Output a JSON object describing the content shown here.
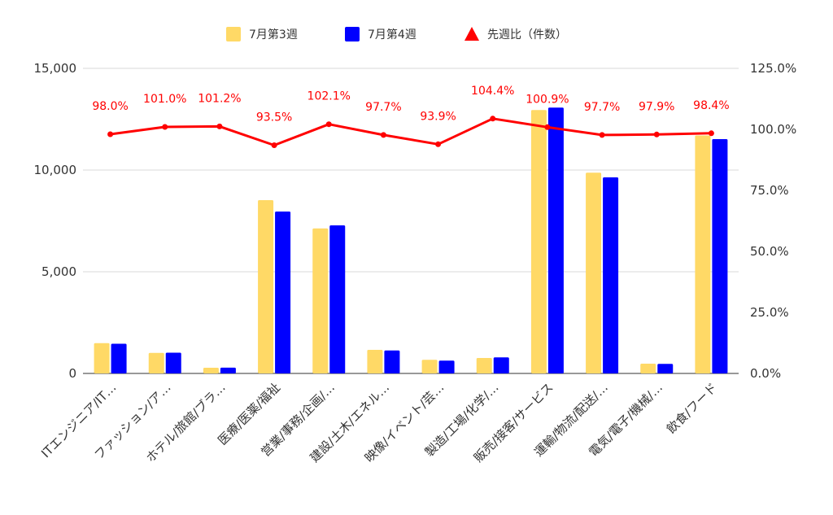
{
  "chart_data": {
    "type": "bar",
    "categories": [
      "ITエンジニア/IT…",
      "ファッション/ア…",
      "ホテル/旅館/ブラ…",
      "医療/医薬/福祉",
      "営業/事務/企画/…",
      "建設/土木/エネル…",
      "映像/イベント/芸…",
      "製造/工場/化学/…",
      "販売/接客/サービス",
      "運輸/物流/配送/…",
      "電気/電子/機械/…",
      "飲食/フード"
    ],
    "series": [
      {
        "name": "7月第3週",
        "type": "bar",
        "axis": "left",
        "color": "#FFD966",
        "values": [
          1490,
          1010,
          280,
          8520,
          7130,
          1160,
          670,
          760,
          12950,
          9870,
          480,
          11700
        ]
      },
      {
        "name": "7月第4週",
        "type": "bar",
        "axis": "left",
        "color": "#0000FF",
        "values": [
          1460,
          1020,
          283,
          7960,
          7280,
          1130,
          630,
          790,
          13070,
          9640,
          470,
          11520
        ]
      },
      {
        "name": "先週比（件数）",
        "type": "line",
        "axis": "right",
        "color": "#FF0000",
        "values": [
          98.0,
          101.0,
          101.2,
          93.5,
          102.1,
          97.7,
          93.9,
          104.4,
          100.9,
          97.7,
          97.9,
          98.4
        ],
        "labels": [
          "98.0%",
          "101.0%",
          "101.2%",
          "93.5%",
          "102.1%",
          "97.7%",
          "93.9%",
          "104.4%",
          "100.9%",
          "97.7%",
          "97.9%",
          "98.4%"
        ]
      }
    ],
    "y_left": {
      "ylim": [
        0,
        15000
      ],
      "ticks": [
        0,
        5000,
        10000,
        15000
      ],
      "tick_labels": [
        "0",
        "5,000",
        "10,000",
        "15,000"
      ]
    },
    "y_right": {
      "ylim": [
        0,
        125
      ],
      "ticks": [
        0,
        25,
        50,
        75,
        100,
        125
      ],
      "tick_labels": [
        "0.0%",
        "25.0%",
        "50.0%",
        "75.0%",
        "100.0%",
        "125.0%"
      ]
    },
    "grid": true,
    "legend_position": "top-center"
  }
}
